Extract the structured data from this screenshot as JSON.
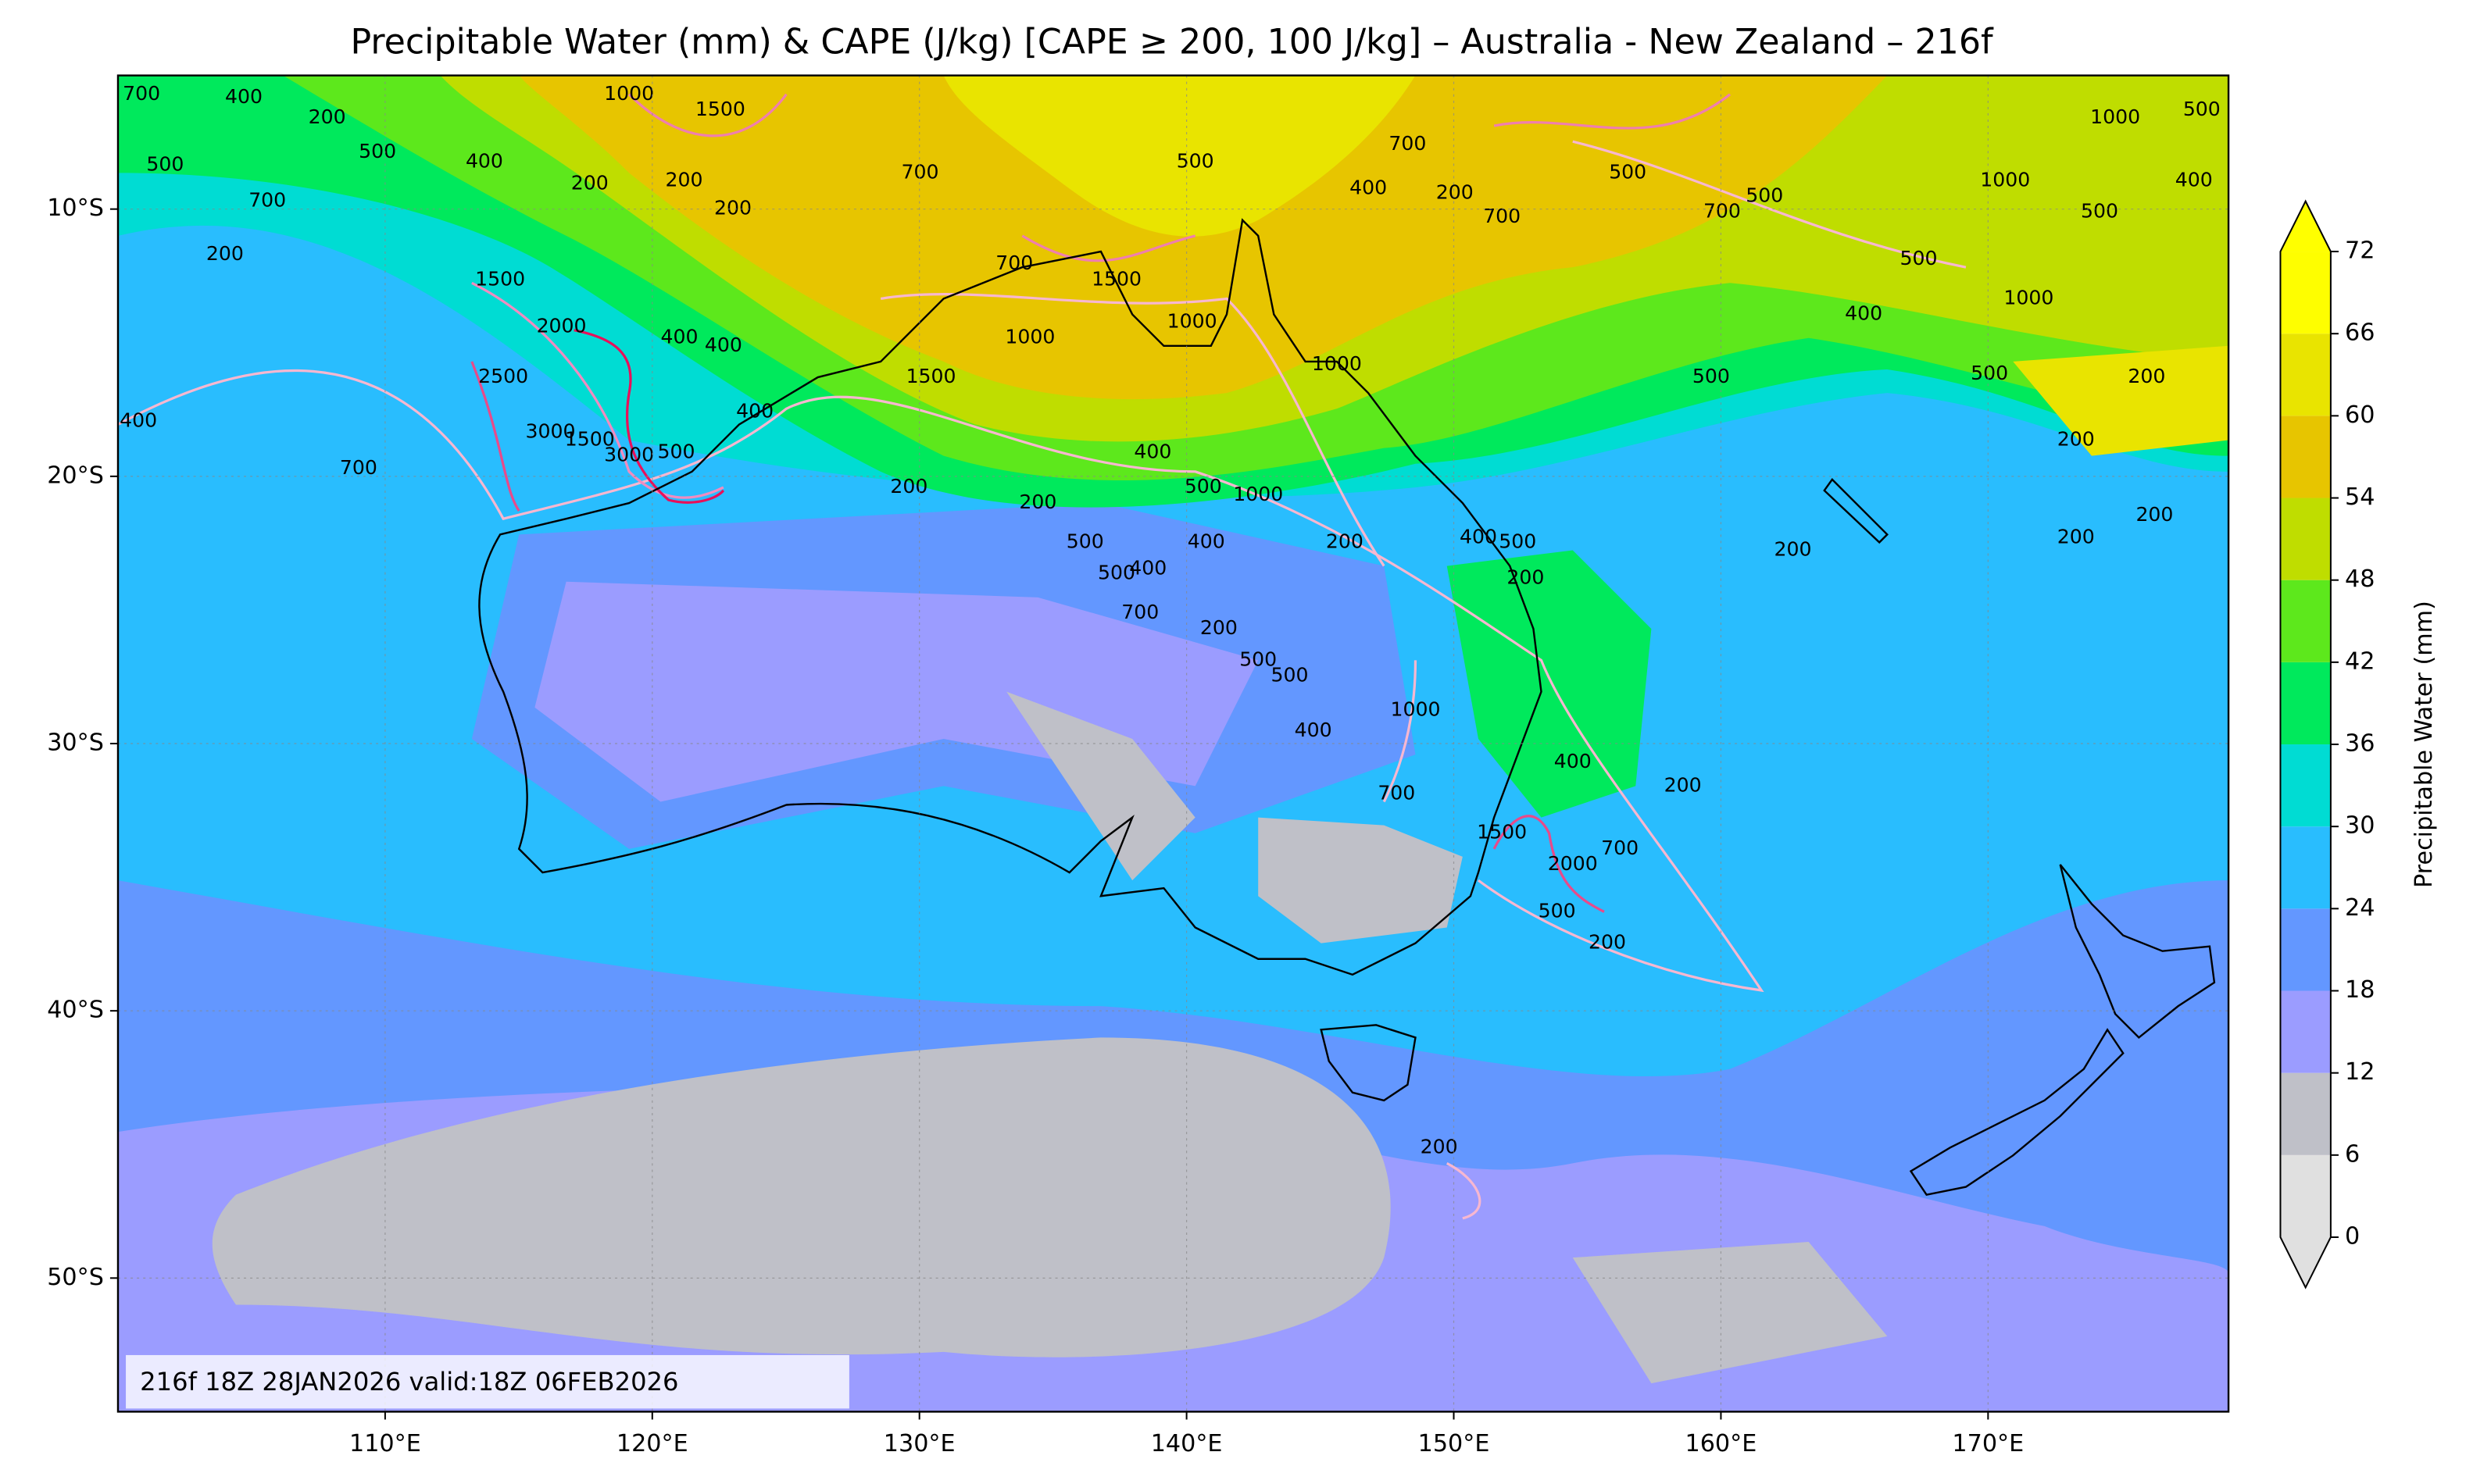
{
  "title": "Precipitable Water (mm) & CAPE (J/kg) [CAPE ≥ 200, 100 J/kg] – Australia - New Zealand – 216f",
  "map": {
    "xlim": [
      100,
      179
    ],
    "ylim": [
      -55,
      -5
    ],
    "grid": true,
    "xticks": [
      {
        "value": 110,
        "label": "110°E"
      },
      {
        "value": 120,
        "label": "120°E"
      },
      {
        "value": 130,
        "label": "130°E"
      },
      {
        "value": 140,
        "label": "140°E"
      },
      {
        "value": 150,
        "label": "150°E"
      },
      {
        "value": 160,
        "label": "160°E"
      },
      {
        "value": 170,
        "label": "170°E"
      }
    ],
    "yticks": [
      {
        "value": -10,
        "label": "10°S"
      },
      {
        "value": -20,
        "label": "20°S"
      },
      {
        "value": -30,
        "label": "30°S"
      },
      {
        "value": -40,
        "label": "40°S"
      },
      {
        "value": -50,
        "label": "50°S"
      }
    ]
  },
  "colorbar": {
    "label": "Precipitable Water (mm)",
    "ticks": [
      0,
      6,
      12,
      18,
      24,
      30,
      36,
      42,
      48,
      54,
      60,
      66,
      72
    ],
    "colors": [
      "#e0e0e0",
      "#bfc0c8",
      "#9b9cff",
      "#6397ff",
      "#29bdfe",
      "#00dcd3",
      "#00e95c",
      "#5de81c",
      "#bfdd00",
      "#e7c500",
      "#e9e400",
      "#fefe00"
    ],
    "under_color": "#e0e0e0",
    "over_color": "#ffff00"
  },
  "contour_labels": [
    700,
    400,
    200,
    500,
    400,
    500,
    700,
    200,
    200,
    200,
    200,
    1000,
    1500,
    1500,
    2000,
    400,
    400,
    2500,
    3000,
    1500,
    3000,
    500,
    400,
    1500,
    1000,
    1500,
    700,
    1000,
    1000,
    400,
    500,
    1000,
    400,
    200,
    200,
    500,
    200,
    400,
    500,
    200,
    500,
    400,
    1000,
    200,
    200,
    200,
    200,
    200,
    1000,
    500,
    500,
    500,
    1000,
    400,
    500,
    200,
    500,
    700,
    400,
    200,
    700,
    2000,
    500,
    200,
    1500,
    200,
    700,
    400,
    200,
    700,
    700,
    400,
    500,
    700,
    700,
    500,
    400,
    500,
    400,
    1000,
    500,
    700,
    500
  ],
  "info": "216f 18Z 28JAN2026 valid:18Z 06FEB2026"
}
